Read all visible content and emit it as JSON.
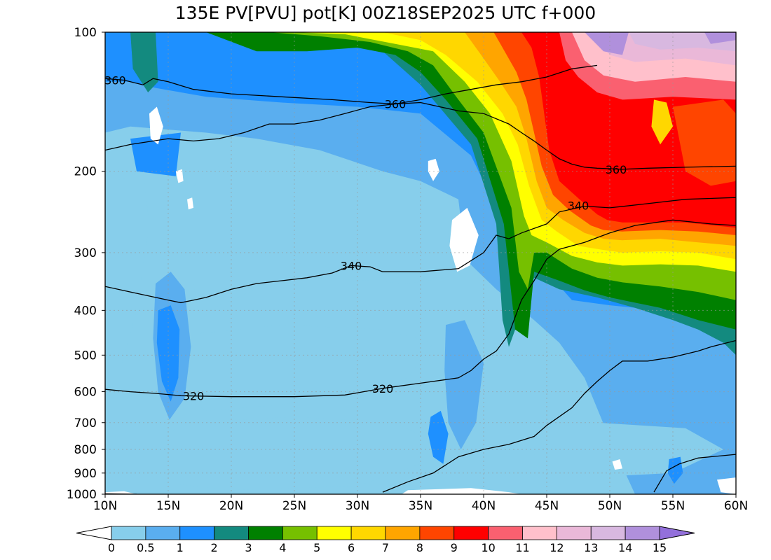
{
  "title": "135E PV[PVU] pot[K] 00Z18SEP2025 UTC f+000",
  "chart_data": {
    "type": "heatmap",
    "title": "135E PV[PVU] pot[K] 00Z18SEP2025 UTC f+000",
    "x_ticks": [
      "10N",
      "15N",
      "20N",
      "25N",
      "30N",
      "35N",
      "40N",
      "45N",
      "50N",
      "55N",
      "60N"
    ],
    "x_values": [
      10,
      15,
      20,
      25,
      30,
      35,
      40,
      45,
      50,
      55,
      60
    ],
    "xlim": [
      10,
      60
    ],
    "y_ticks": [
      "100",
      "200",
      "300",
      "400",
      "500",
      "600",
      "700",
      "800",
      "900",
      "1000"
    ],
    "y_values": [
      100,
      200,
      300,
      400,
      500,
      600,
      700,
      800,
      900,
      1000
    ],
    "ylim": [
      1000,
      100
    ],
    "y_scale": "log",
    "grid": true,
    "colorbar": {
      "tick_labels": [
        "0",
        "0.5",
        "1",
        "2",
        "3",
        "4",
        "5",
        "6",
        "7",
        "8",
        "9",
        "10",
        "11",
        "12",
        "13",
        "14",
        "15"
      ],
      "colors": [
        "#87ceeb",
        "#5aaeef",
        "#1e90ff",
        "#138a7f",
        "#008000",
        "#76c000",
        "#ffff00",
        "#ffd700",
        "#ffa500",
        "#ff4500",
        "#ff0000",
        "#fa6070",
        "#ffc0cb",
        "#eab8d8",
        "#d8b8e0",
        "#b090dc"
      ],
      "under_color": "#ffffff",
      "over_color": "#9370db"
    },
    "contour_labels": [
      {
        "text": "360",
        "lat": 10.8,
        "p": 127
      },
      {
        "text": "360",
        "lat": 33,
        "p": 143
      },
      {
        "text": "360",
        "lat": 50.5,
        "p": 198
      },
      {
        "text": "340",
        "lat": 47.5,
        "p": 237
      },
      {
        "text": "340",
        "lat": 29.5,
        "p": 320
      },
      {
        "text": "320",
        "lat": 17,
        "p": 613
      },
      {
        "text": "320",
        "lat": 32,
        "p": 590
      }
    ],
    "contours": [
      {
        "lat": [
          10,
          12,
          15,
          17,
          19,
          21,
          23,
          25,
          27,
          29,
          31,
          33,
          35,
          37,
          39,
          41,
          43,
          45,
          47,
          49
        ],
        "p": [
          180,
          175,
          170,
          172,
          170,
          165,
          158,
          158,
          155,
          150,
          145,
          143,
          140,
          136,
          133,
          130,
          128,
          125,
          120,
          118
        ]
      },
      {
        "lat": [
          10,
          11.5,
          13,
          13.8,
          15,
          17,
          20,
          24,
          28,
          31,
          33,
          35,
          38,
          40,
          42,
          43,
          44,
          45,
          46,
          47,
          48,
          49,
          51,
          53,
          56,
          60
        ],
        "p": [
          126,
          127,
          130,
          126,
          128,
          133,
          136,
          138,
          140,
          142,
          143,
          142,
          148,
          150,
          158,
          165,
          172,
          180,
          188,
          193,
          196,
          197,
          198,
          197,
          196,
          195
        ]
      },
      {
        "lat": [
          10,
          12,
          14,
          15,
          16,
          17,
          18,
          20,
          22,
          24,
          26,
          28,
          29.5,
          31,
          32,
          35,
          38,
          40,
          41,
          42,
          43,
          45,
          46,
          48,
          50,
          53,
          56,
          60
        ],
        "p": [
          355,
          365,
          375,
          380,
          385,
          380,
          375,
          360,
          350,
          345,
          340,
          332,
          320,
          322,
          330,
          330,
          325,
          300,
          275,
          280,
          272,
          260,
          245,
          238,
          240,
          235,
          230,
          228
        ]
      },
      {
        "lat": [
          10,
          12,
          14,
          16,
          17,
          20,
          25,
          29,
          32,
          35,
          38,
          39,
          40,
          41,
          42,
          43,
          44,
          45,
          46,
          48,
          50,
          52,
          55,
          58,
          60
        ],
        "p": [
          593,
          600,
          605,
          612,
          613,
          615,
          615,
          610,
          590,
          575,
          560,
          540,
          510,
          490,
          450,
          380,
          345,
          310,
          295,
          285,
          272,
          262,
          255,
          260,
          262
        ]
      },
      {
        "lat": [
          32,
          34,
          36,
          38,
          40,
          42,
          44,
          45,
          47,
          48,
          49,
          50,
          51,
          53,
          55,
          57,
          58,
          60
        ],
        "p": [
          990,
          940,
          900,
          830,
          800,
          780,
          750,
          710,
          650,
          605,
          570,
          540,
          515,
          515,
          505,
          490,
          480,
          465
        ]
      },
      {
        "lat": [
          53.5,
          54.5,
          55.5,
          57,
          60
        ],
        "p": [
          990,
          890,
          860,
          835,
          820
        ]
      }
    ]
  }
}
